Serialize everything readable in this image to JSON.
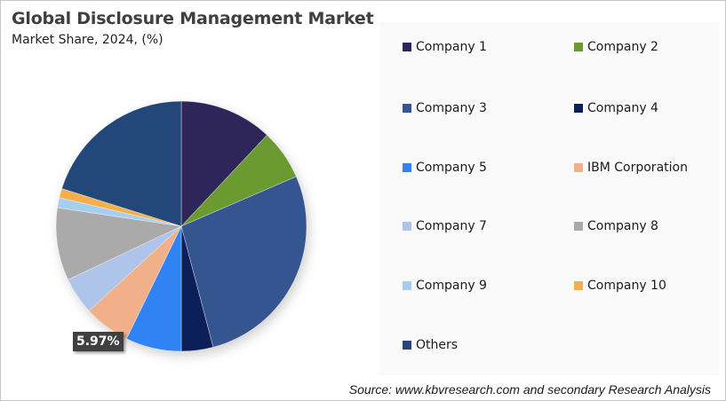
{
  "header": {
    "title": "Global Disclosure Management Market",
    "subtitle": "Market Share, 2024, (%)"
  },
  "highlight_label": "5.97%",
  "source": "Source: www.kbvresearch.com and secondary Research Analysis",
  "legend": [
    {
      "label": "Company 1",
      "color": "#2e2558"
    },
    {
      "label": "Company 2",
      "color": "#6a9a30"
    },
    {
      "label": "Company 3",
      "color": "#34558f"
    },
    {
      "label": "Company 4",
      "color": "#0c1f58"
    },
    {
      "label": "Company 5",
      "color": "#2f83f2"
    },
    {
      "label": "IBM Corporation",
      "color": "#f2b08a"
    },
    {
      "label": "Company 7",
      "color": "#aec4e8"
    },
    {
      "label": "Company 8",
      "color": "#aaaaaa"
    },
    {
      "label": "Company 9",
      "color": "#a6cdf2"
    },
    {
      "label": "Company 10",
      "color": "#f4ae4a"
    },
    {
      "label": "Others",
      "color": "#24477a"
    }
  ],
  "chart_data": {
    "type": "pie",
    "title": "Global Disclosure Management Market",
    "subtitle": "Market Share, 2024, (%)",
    "categories": [
      "Company 1",
      "Company 2",
      "Company 3",
      "Company 4",
      "Company 5",
      "IBM Corporation",
      "Company 7",
      "Company 8",
      "Company 9",
      "Company 10",
      "Others"
    ],
    "values": [
      12.0,
      6.5,
      27.4,
      4.1,
      7.2,
      5.97,
      4.8,
      9.4,
      1.3,
      1.2,
      20.13
    ],
    "colors": [
      "#2e2558",
      "#6a9a30",
      "#34558f",
      "#0c1f58",
      "#2f83f2",
      "#f2b08a",
      "#aec4e8",
      "#aaaaaa",
      "#a6cdf2",
      "#f4ae4a",
      "#24477a"
    ],
    "annotations": [
      {
        "category": "IBM Corporation",
        "label": "5.97%"
      }
    ],
    "start_angle": "12 o'clock, clockwise",
    "legend_position": "right",
    "source": "Source: www.kbvresearch.com and secondary Research Analysis"
  }
}
